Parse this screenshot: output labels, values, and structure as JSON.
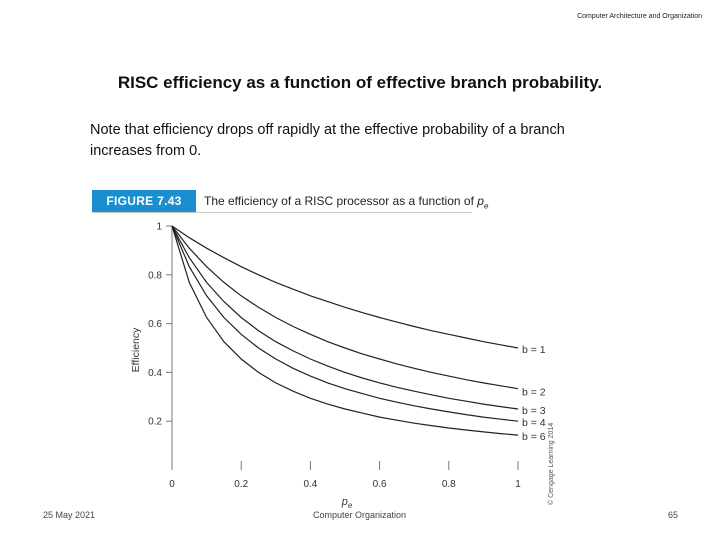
{
  "header_note": "Computer Architecture and Organization",
  "slide_title": "RISC efficiency as a function of effective branch probability.",
  "slide_body": "Note that efficiency drops off rapidly at the effective probability of a branch increases from 0.",
  "figure": {
    "label": "FIGURE 7.43",
    "caption": "The efficiency of a RISC processor as a function of",
    "caption_symbol": "p",
    "caption_subscript": "e",
    "copyright": "© Cengage Learning 2014",
    "label_color": "#1a8fd0"
  },
  "chart_data": {
    "type": "line",
    "title": "The efficiency of a RISC processor as a function of pe",
    "xlabel": "pe",
    "ylabel": "Efficiency",
    "xlim": [
      0,
      1
    ],
    "ylim": [
      0,
      1
    ],
    "x_ticks": [
      "0",
      "0.2",
      "0.4",
      "0.6",
      "0.8",
      "1"
    ],
    "y_ticks": [
      "0.2",
      "0.4",
      "0.6",
      "0.8",
      "1"
    ],
    "x": [
      0,
      0.05,
      0.1,
      0.15,
      0.2,
      0.25,
      0.3,
      0.35,
      0.4,
      0.45,
      0.5,
      0.55,
      0.6,
      0.65,
      0.7,
      0.75,
      0.8,
      0.85,
      0.9,
      0.95,
      1.0
    ],
    "series": [
      {
        "name": "b = 1",
        "values": [
          1.0,
          0.952,
          0.909,
          0.87,
          0.833,
          0.8,
          0.769,
          0.741,
          0.714,
          0.69,
          0.667,
          0.645,
          0.625,
          0.606,
          0.588,
          0.571,
          0.556,
          0.541,
          0.526,
          0.513,
          0.5
        ]
      },
      {
        "name": "b = 2",
        "values": [
          1.0,
          0.909,
          0.833,
          0.769,
          0.714,
          0.667,
          0.625,
          0.588,
          0.556,
          0.526,
          0.5,
          0.476,
          0.455,
          0.435,
          0.417,
          0.4,
          0.385,
          0.37,
          0.357,
          0.345,
          0.333
        ]
      },
      {
        "name": "b = 3",
        "values": [
          1.0,
          0.87,
          0.769,
          0.69,
          0.625,
          0.571,
          0.526,
          0.488,
          0.455,
          0.426,
          0.4,
          0.377,
          0.357,
          0.339,
          0.323,
          0.308,
          0.294,
          0.282,
          0.27,
          0.26,
          0.25
        ]
      },
      {
        "name": "b = 4",
        "values": [
          1.0,
          0.833,
          0.714,
          0.625,
          0.556,
          0.5,
          0.455,
          0.417,
          0.385,
          0.357,
          0.333,
          0.313,
          0.294,
          0.278,
          0.263,
          0.25,
          0.238,
          0.227,
          0.217,
          0.208,
          0.2
        ]
      },
      {
        "name": "b = 6",
        "values": [
          1.0,
          0.769,
          0.625,
          0.526,
          0.455,
          0.4,
          0.357,
          0.323,
          0.294,
          0.27,
          0.25,
          0.233,
          0.217,
          0.204,
          0.192,
          0.182,
          0.172,
          0.164,
          0.156,
          0.149,
          0.143
        ]
      }
    ],
    "grid": false,
    "legend": "inline labels at right end of each curve"
  },
  "footer": {
    "date": "25 May 2021",
    "center": "Computer Organization",
    "page": "65"
  }
}
